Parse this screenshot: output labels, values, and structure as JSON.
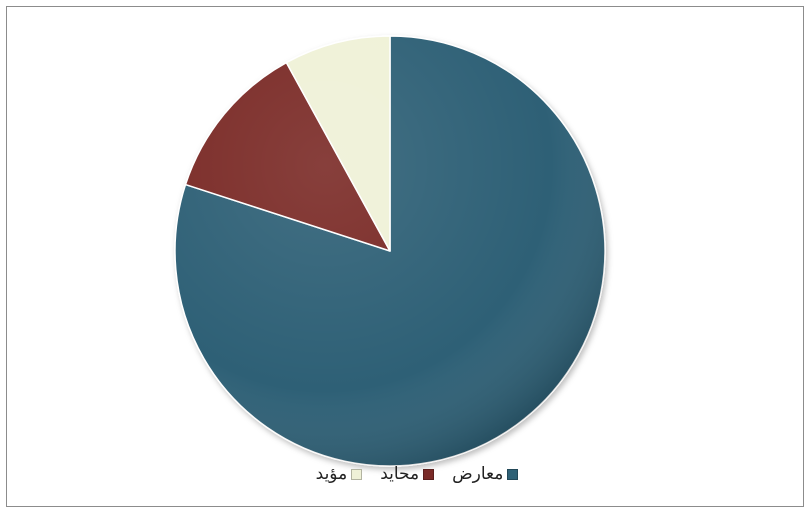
{
  "chart_data": {
    "type": "pie",
    "categories": [
      "معارض",
      "محايد",
      "مؤيد"
    ],
    "values": [
      80,
      12,
      8
    ],
    "colors": [
      "#2e6176",
      "#7a2a27",
      "#eff1d7"
    ],
    "legend_position": "bottom",
    "start_angle": "top",
    "direction": "clockwise"
  }
}
